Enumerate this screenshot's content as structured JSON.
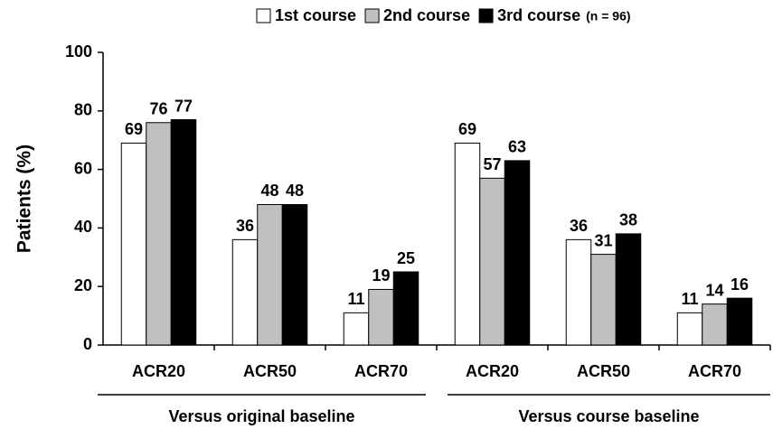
{
  "chart_data": {
    "type": "bar",
    "y_label": "Patients (%)",
    "categories": [
      "ACR20",
      "ACR50",
      "ACR70",
      "ACR20",
      "ACR50",
      "ACR70"
    ],
    "group_labels": [
      "Versus original baseline",
      "Versus course baseline"
    ],
    "series": [
      {
        "name": "1st course",
        "color": "#ffffff",
        "values": [
          69,
          36,
          11,
          69,
          36,
          11
        ]
      },
      {
        "name": "2nd course",
        "color": "#c0c0c0",
        "values": [
          76,
          48,
          19,
          57,
          31,
          14
        ]
      },
      {
        "name": "3rd course",
        "color": "#000000",
        "values": [
          77,
          48,
          25,
          63,
          38,
          16
        ]
      }
    ],
    "legend_note": "(n = 96)",
    "legend_position": "top",
    "ylim": [
      0,
      100
    ],
    "yticks": [
      0,
      20,
      40,
      60,
      80,
      100
    ],
    "grid": false
  }
}
